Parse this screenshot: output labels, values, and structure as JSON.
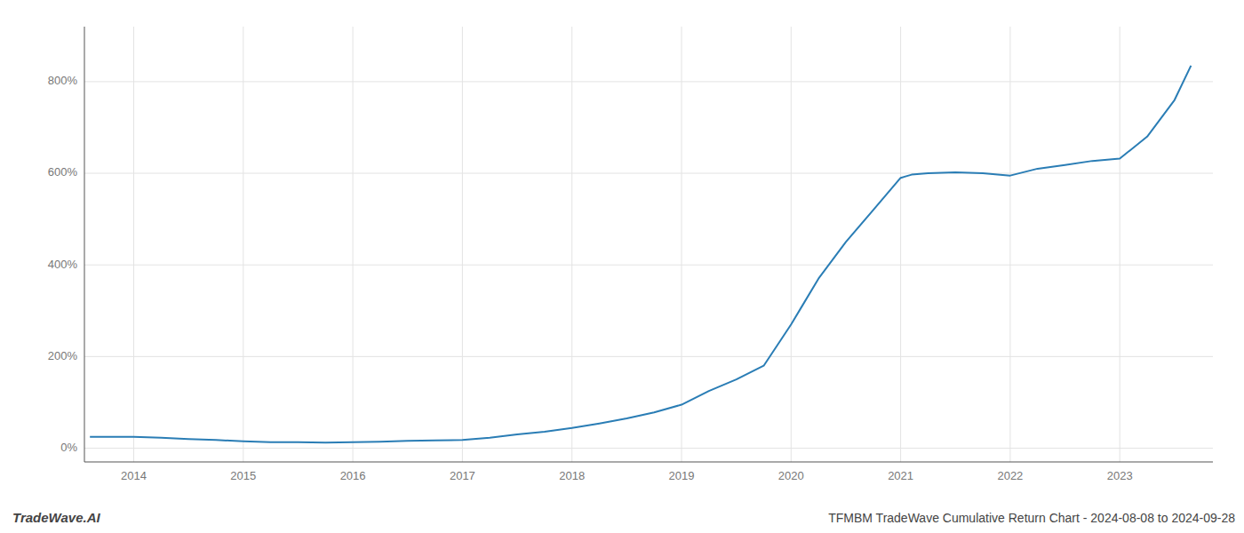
{
  "chart_data": {
    "type": "line",
    "title": "TFMBM TradeWave Cumulative Return Chart - 2024-08-08 to 2024-09-28",
    "annotations": [
      "TradeWave.AI"
    ],
    "color": "#2a7db5",
    "grid": true,
    "x": [
      2013.6,
      2014.0,
      2014.25,
      2014.5,
      2014.75,
      2015.0,
      2015.25,
      2015.5,
      2015.75,
      2016.0,
      2016.25,
      2016.5,
      2016.75,
      2017.0,
      2017.25,
      2017.5,
      2017.75,
      2018.0,
      2018.25,
      2018.5,
      2018.75,
      2019.0,
      2019.25,
      2019.5,
      2019.75,
      2020.0,
      2020.1,
      2020.25,
      2020.5,
      2020.75,
      2021.0,
      2021.1,
      2021.25,
      2021.5,
      2021.75,
      2022.0,
      2022.25,
      2022.5,
      2022.75,
      2023.0,
      2023.25,
      2023.5,
      2023.65
    ],
    "values": [
      25,
      25,
      23,
      20,
      18,
      15,
      13,
      13,
      12,
      13,
      14,
      16,
      17,
      18,
      23,
      30,
      36,
      44,
      54,
      65,
      78,
      95,
      125,
      150,
      180,
      270,
      310,
      370,
      450,
      520,
      590,
      597,
      600,
      602,
      600,
      595,
      610,
      618,
      627,
      632,
      680,
      760,
      835
    ],
    "xlim": [
      2013.55,
      2023.85
    ],
    "xticks": [
      2014,
      2015,
      2016,
      2017,
      2018,
      2019,
      2020,
      2021,
      2022,
      2023
    ],
    "ylim": [
      -30,
      920
    ],
    "yticks": [
      {
        "value": 0,
        "label": "0%"
      },
      {
        "value": 200,
        "label": "200%"
      },
      {
        "value": 400,
        "label": "400%"
      },
      {
        "value": 600,
        "label": "600%"
      },
      {
        "value": 800,
        "label": "800%"
      }
    ]
  }
}
